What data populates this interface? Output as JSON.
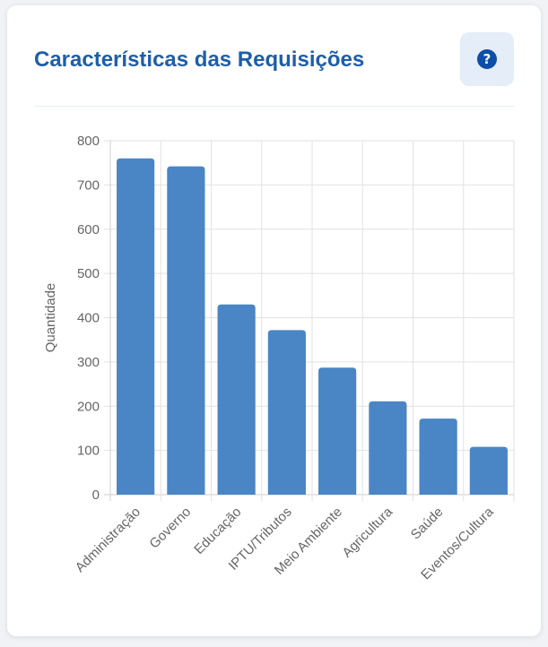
{
  "card": {
    "title": "Características das Requisições",
    "help_label": "?"
  },
  "colors": {
    "bar": "#4a86c5",
    "title": "#1f5ea8",
    "help_icon": "#0d4fa6",
    "grid": "#e2e2e2",
    "tick": "#666666"
  },
  "chart_data": {
    "type": "bar",
    "title": "",
    "xlabel": "",
    "ylabel": "Quantidade",
    "categories": [
      "Administração",
      "Governo",
      "Educação",
      "IPTU/Tributos",
      "Meio Ambiente",
      "Agricultura",
      "Saúde",
      "Eventos/Cultura"
    ],
    "values": [
      760,
      742,
      430,
      372,
      287,
      211,
      172,
      108
    ],
    "ylim": [
      0,
      800
    ],
    "yticks": [
      0,
      100,
      200,
      300,
      400,
      500,
      600,
      700,
      800
    ],
    "grid": true,
    "legend": "none"
  }
}
